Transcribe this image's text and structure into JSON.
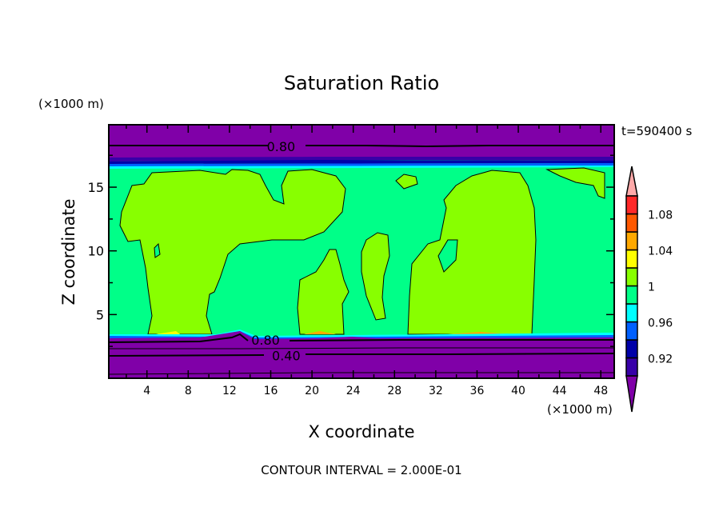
{
  "chart_data": {
    "type": "heatmap",
    "subtype": "filled-contour",
    "title": "Saturation Ratio",
    "xlabel": "X coordinate",
    "ylabel": "Z coordinate",
    "x_unit": "(×1000 m)",
    "y_unit": "(×1000 m)",
    "time_label": "t=590400 s",
    "footer": "CONTOUR INTERVAL = 2.000E-01",
    "xlim": [
      0.3,
      49.3
    ],
    "ylim": [
      0,
      19.9
    ],
    "xticks": [
      4,
      8,
      12,
      16,
      20,
      24,
      28,
      32,
      36,
      40,
      44,
      48
    ],
    "yticks": [
      5,
      10,
      15
    ],
    "contour_labels": [
      {
        "text": "0.80",
        "x": 17,
        "y": 18.2
      },
      {
        "text": "0.80",
        "x": 15.5,
        "y": 3.0
      },
      {
        "text": "0.40",
        "x": 17.5,
        "y": 1.8
      }
    ],
    "colorbar": {
      "levels": [
        0.9,
        0.92,
        0.94,
        0.96,
        0.98,
        1.0,
        1.02,
        1.04,
        1.06,
        1.08,
        1.1
      ],
      "tick_labels": [
        "0.92",
        "0.96",
        "1",
        "1.04",
        "1.08"
      ],
      "tick_values": [
        0.92,
        0.96,
        1.0,
        1.04,
        1.08
      ],
      "under_color": "#8000a8",
      "over_color": "#ffaaaa",
      "colors": [
        "#3800a8",
        "#0000a8",
        "#0060ff",
        "#00ffff",
        "#00ff88",
        "#88ff00",
        "#ffff00",
        "#ffa800",
        "#ff5800",
        "#ff2828"
      ]
    }
  }
}
